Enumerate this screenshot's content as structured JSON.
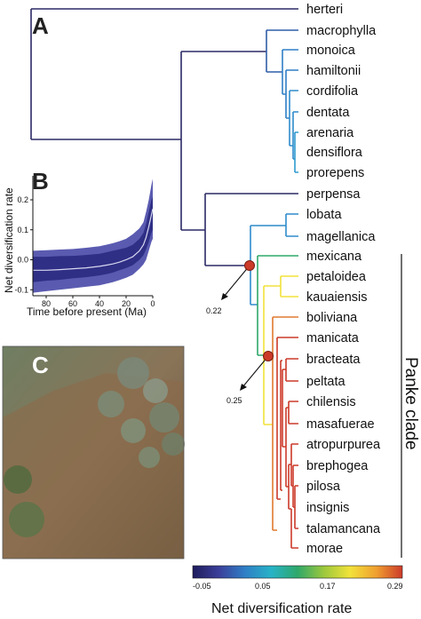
{
  "panels": {
    "a": "A",
    "b": "B",
    "c": "C"
  },
  "taxa": [
    "herteri",
    "macrophylla",
    "monoica",
    "hamiltonii",
    "cordifolia",
    "dentata",
    "arenaria",
    "densiflora",
    "prorepens",
    "perpensa",
    "lobata",
    "magellanica",
    "mexicana",
    "petaloidea",
    "kauaiensis",
    "boliviana",
    "manicata",
    "bracteata",
    "peltata",
    "chilensis",
    "masafuerae",
    "atropurpurea",
    "brephogea",
    "pilosa",
    "insignis",
    "talamancana",
    "morae"
  ],
  "shift_labels": {
    "s1": "0.22",
    "s2": "0.25"
  },
  "clade_label": "Panke clade",
  "colorbar": {
    "title": "Net diversification rate",
    "ticks": [
      "-0.05",
      "0.05",
      "0.17",
      "0.29"
    ],
    "colors": [
      "#1f1c5c",
      "#3b3f9a",
      "#2f7fc6",
      "#27b3c7",
      "#2fa86a",
      "#9cc83c",
      "#f2e23a",
      "#f0a030",
      "#cc3a2a"
    ]
  },
  "chart_data": {
    "type": "area",
    "xlabel": "Time before present (Ma)",
    "ylabel": "Net diversification rate",
    "x_ticks": [
      80,
      60,
      40,
      20,
      0
    ],
    "y_ticks": [
      -0.1,
      0.0,
      0.1,
      0.2
    ],
    "xlim": [
      90,
      0
    ],
    "ylim": [
      -0.12,
      0.28
    ],
    "x_reversed": true,
    "colors": {
      "outer": "#5a5bb0",
      "inner": "#2f2f86",
      "mean": "#d8d8f0"
    },
    "x": [
      90,
      80,
      70,
      60,
      50,
      40,
      35,
      30,
      25,
      20,
      15,
      10,
      7,
      5,
      3,
      1,
      0
    ],
    "mean": [
      -0.035,
      -0.035,
      -0.033,
      -0.03,
      -0.027,
      -0.022,
      -0.018,
      -0.014,
      -0.008,
      0.0,
      0.01,
      0.03,
      0.05,
      0.075,
      0.11,
      0.15,
      0.17
    ],
    "inner_low": [
      -0.075,
      -0.07,
      -0.067,
      -0.062,
      -0.058,
      -0.052,
      -0.048,
      -0.043,
      -0.035,
      -0.028,
      -0.018,
      0.0,
      0.015,
      0.035,
      0.06,
      0.09,
      0.1
    ],
    "inner_high": [
      0.01,
      0.01,
      0.012,
      0.013,
      0.016,
      0.02,
      0.025,
      0.03,
      0.035,
      0.04,
      0.05,
      0.07,
      0.09,
      0.12,
      0.16,
      0.2,
      0.21
    ],
    "outer_low": [
      -0.11,
      -0.105,
      -0.1,
      -0.095,
      -0.09,
      -0.085,
      -0.08,
      -0.075,
      -0.068,
      -0.06,
      -0.05,
      -0.03,
      -0.015,
      0.0,
      0.03,
      0.06,
      0.07
    ],
    "outer_high": [
      0.03,
      0.032,
      0.034,
      0.036,
      0.04,
      0.045,
      0.05,
      0.055,
      0.062,
      0.07,
      0.085,
      0.105,
      0.125,
      0.16,
      0.2,
      0.25,
      0.27
    ]
  }
}
